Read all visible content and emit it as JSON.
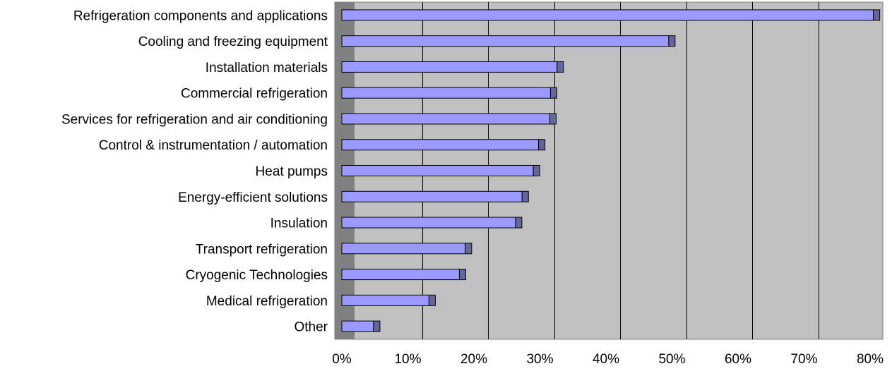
{
  "chart_data": {
    "type": "bar",
    "orientation": "horizontal",
    "title": "",
    "xlabel": "",
    "ylabel": "",
    "xlim": [
      0,
      80
    ],
    "tick_labels": [
      "0%",
      "10%",
      "20%",
      "30%",
      "40%",
      "50%",
      "60%",
      "70%",
      "80%"
    ],
    "grid": true,
    "legend": "none",
    "categories": [
      "Refrigeration components and applications",
      "Cooling and freezing equipment",
      "Installation materials",
      "Commercial refrigeration",
      "Services for refrigeration and air conditioning",
      "Control & instrumentation / automation",
      "Heat pumps",
      "Energy-efficient solutions",
      "Insulation",
      "Transport refrigeration",
      "Cryogenic Technologies",
      "Medical refrigeration",
      "Other"
    ],
    "values": [
      80.5,
      49.5,
      32.6,
      31.6,
      31.5,
      29.8,
      29.0,
      27.3,
      26.3,
      18.7,
      17.8,
      13.2,
      4.8
    ],
    "colors": {
      "plot_background": "#c0c0c0",
      "wall_left": "#808080",
      "bar_fill": "#9999ff",
      "bar_cap": "#666699",
      "bar_stroke": "#000000",
      "grid": "#000000"
    }
  }
}
